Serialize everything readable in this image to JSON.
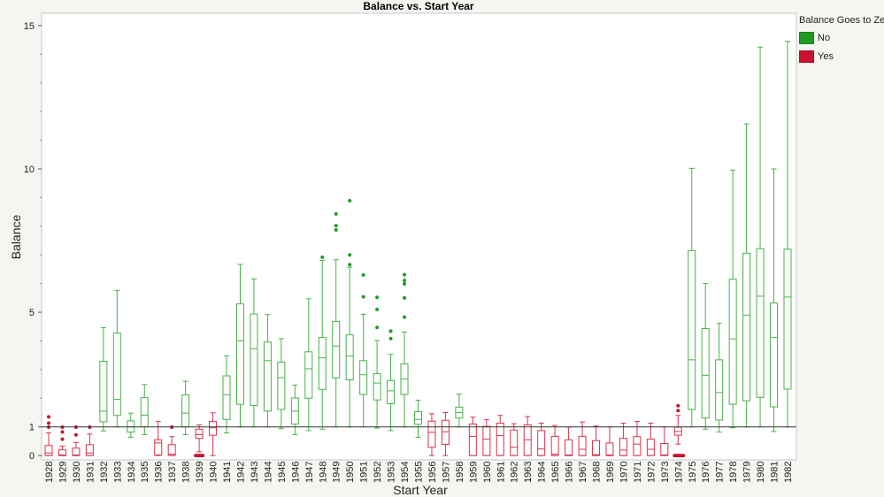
{
  "chart_data": {
    "type": "boxplot",
    "title": "Balance vs. Start Year",
    "xlabel": "Start Year",
    "ylabel": "Balance",
    "ylim": [
      -0.15,
      15.43
    ],
    "yticks": [
      0,
      1,
      5,
      10,
      15
    ],
    "reference_line": 1,
    "legend": {
      "title": "Balance Goes to Zero",
      "placement": "right",
      "entries": [
        {
          "label": "No",
          "color": "#229a22"
        },
        {
          "label": "Yes",
          "color": "#c8142e"
        }
      ]
    },
    "series_colors": {
      "No": "#49b049",
      "Yes": "#d8344e"
    },
    "boxes": [
      {
        "year": "1928",
        "group": "Yes",
        "min": 0,
        "q1": 0,
        "median": 0.09,
        "q3": 0.35,
        "max": 0.79,
        "outliers": [
          1.35,
          1.13,
          0.99
        ]
      },
      {
        "year": "1929",
        "group": "Yes",
        "min": 0,
        "q1": 0,
        "median": 0.02,
        "q3": 0.2,
        "max": 0.33,
        "outliers": [
          0.99,
          0.82,
          0.57
        ]
      },
      {
        "year": "1930",
        "group": "Yes",
        "min": 0,
        "q1": 0,
        "median": 0.02,
        "q3": 0.26,
        "max": 0.46,
        "outliers": [
          0.99,
          0.72
        ]
      },
      {
        "year": "1931",
        "group": "Yes",
        "min": 0,
        "q1": 0,
        "median": 0.09,
        "q3": 0.38,
        "max": 0.75,
        "outliers": [
          0.99
        ]
      },
      {
        "year": "1932",
        "group": "No",
        "min": 0.86,
        "q1": 1.18,
        "median": 1.55,
        "q3": 3.29,
        "max": 4.46,
        "outliers": []
      },
      {
        "year": "1933",
        "group": "No",
        "min": 1.0,
        "q1": 1.4,
        "median": 1.96,
        "q3": 4.27,
        "max": 5.76,
        "outliers": []
      },
      {
        "year": "1934",
        "group": "No",
        "min": 0.64,
        "q1": 0.82,
        "median": 1.0,
        "q3": 1.21,
        "max": 1.48,
        "outliers": []
      },
      {
        "year": "1935",
        "group": "No",
        "min": 0.73,
        "q1": 1.0,
        "median": 1.41,
        "q3": 2.02,
        "max": 2.48,
        "outliers": []
      },
      {
        "year": "1936",
        "group": "Yes",
        "min": 0,
        "q1": 0.02,
        "median": 0.44,
        "q3": 0.55,
        "max": 1.19,
        "outliers": []
      },
      {
        "year": "1937",
        "group": "Yes",
        "min": 0,
        "q1": 0,
        "median": 0.05,
        "q3": 0.38,
        "max": 0.66,
        "outliers": [
          0.99
        ]
      },
      {
        "year": "1938",
        "group": "No",
        "min": 0.73,
        "q1": 1.0,
        "median": 1.48,
        "q3": 2.12,
        "max": 2.59,
        "outliers": []
      },
      {
        "year": "1939",
        "group": "Yes",
        "min": 0.13,
        "q1": 0.6,
        "median": 0.73,
        "q3": 0.92,
        "max": 1.07,
        "outliers": [
          0,
          0,
          0,
          0,
          0
        ]
      },
      {
        "year": "1940",
        "group": "Yes",
        "min": 0,
        "q1": 0.71,
        "median": 0.97,
        "q3": 1.19,
        "max": 1.49,
        "outliers": []
      },
      {
        "year": "1941",
        "group": "No",
        "min": 0.79,
        "q1": 1.26,
        "median": 2.12,
        "q3": 2.78,
        "max": 3.48,
        "outliers": []
      },
      {
        "year": "1942",
        "group": "No",
        "min": 1.0,
        "q1": 1.79,
        "median": 4.0,
        "q3": 5.29,
        "max": 6.67,
        "outliers": []
      },
      {
        "year": "1943",
        "group": "No",
        "min": 1.0,
        "q1": 1.75,
        "median": 3.73,
        "q3": 4.94,
        "max": 6.16,
        "outliers": []
      },
      {
        "year": "1944",
        "group": "No",
        "min": 1.0,
        "q1": 1.55,
        "median": 3.31,
        "q3": 3.96,
        "max": 4.92,
        "outliers": []
      },
      {
        "year": "1945",
        "group": "No",
        "min": 0.94,
        "q1": 1.61,
        "median": 2.72,
        "q3": 3.26,
        "max": 4.08,
        "outliers": []
      },
      {
        "year": "1946",
        "group": "No",
        "min": 0.73,
        "q1": 1.1,
        "median": 1.55,
        "q3": 2.01,
        "max": 2.46,
        "outliers": []
      },
      {
        "year": "1947",
        "group": "No",
        "min": 0.87,
        "q1": 2.0,
        "median": 3.03,
        "q3": 3.62,
        "max": 5.47,
        "outliers": []
      },
      {
        "year": "1948",
        "group": "No",
        "min": 0.92,
        "q1": 2.31,
        "median": 3.41,
        "q3": 4.12,
        "max": 6.81,
        "outliers": [
          6.92
        ]
      },
      {
        "year": "1949",
        "group": "No",
        "min": 1.0,
        "q1": 2.71,
        "median": 3.82,
        "q3": 4.68,
        "max": 6.83,
        "outliers": [
          8.43,
          8.02,
          7.87
        ]
      },
      {
        "year": "1950",
        "group": "No",
        "min": 1.0,
        "q1": 2.64,
        "median": 3.47,
        "q3": 4.21,
        "max": 6.57,
        "outliers": [
          6.66,
          7.0,
          8.89
        ]
      },
      {
        "year": "1951",
        "group": "No",
        "min": 1.0,
        "q1": 2.13,
        "median": 2.82,
        "q3": 3.31,
        "max": 4.93,
        "outliers": [
          5.54,
          6.3
        ]
      },
      {
        "year": "1952",
        "group": "No",
        "min": 0.96,
        "q1": 1.94,
        "median": 2.53,
        "q3": 2.86,
        "max": 4.01,
        "outliers": [
          4.47,
          5.1,
          5.52
        ]
      },
      {
        "year": "1953",
        "group": "No",
        "min": 0.87,
        "q1": 1.81,
        "median": 2.26,
        "q3": 2.62,
        "max": 3.53,
        "outliers": [
          4.08,
          4.34,
          4.34
        ]
      },
      {
        "year": "1954",
        "group": "No",
        "min": 1.0,
        "q1": 2.13,
        "median": 2.67,
        "q3": 3.2,
        "max": 4.31,
        "outliers": [
          4.83,
          5.5,
          5.99,
          6.11,
          6.31
        ]
      },
      {
        "year": "1955",
        "group": "No",
        "min": 0.64,
        "q1": 1.09,
        "median": 1.26,
        "q3": 1.53,
        "max": 1.93,
        "outliers": []
      },
      {
        "year": "1956",
        "group": "Yes",
        "min": 0,
        "q1": 0.29,
        "median": 0.81,
        "q3": 1.2,
        "max": 1.46,
        "outliers": []
      },
      {
        "year": "1957",
        "group": "Yes",
        "min": 0,
        "q1": 0.39,
        "median": 0.83,
        "q3": 1.23,
        "max": 1.5,
        "outliers": []
      },
      {
        "year": "1958",
        "group": "No",
        "min": 1.0,
        "q1": 1.31,
        "median": 1.5,
        "q3": 1.69,
        "max": 2.14,
        "outliers": []
      },
      {
        "year": "1959",
        "group": "Yes",
        "min": 0,
        "q1": 0,
        "median": 0.67,
        "q3": 1.1,
        "max": 1.34,
        "outliers": []
      },
      {
        "year": "1960",
        "group": "Yes",
        "min": 0,
        "q1": 0,
        "median": 0.57,
        "q3": 1.02,
        "max": 1.25,
        "outliers": []
      },
      {
        "year": "1961",
        "group": "Yes",
        "min": 0,
        "q1": 0,
        "median": 0.7,
        "q3": 1.13,
        "max": 1.4,
        "outliers": []
      },
      {
        "year": "1962",
        "group": "Yes",
        "min": 0,
        "q1": 0,
        "median": 0.29,
        "q3": 0.89,
        "max": 1.11,
        "outliers": []
      },
      {
        "year": "1963",
        "group": "Yes",
        "min": 0,
        "q1": 0,
        "median": 0.55,
        "q3": 1.07,
        "max": 1.36,
        "outliers": []
      },
      {
        "year": "1964",
        "group": "Yes",
        "min": 0,
        "q1": 0,
        "median": 0.23,
        "q3": 0.87,
        "max": 1.13,
        "outliers": []
      },
      {
        "year": "1965",
        "group": "Yes",
        "min": 0,
        "q1": 0,
        "median": 0.05,
        "q3": 0.67,
        "max": 1.05,
        "outliers": []
      },
      {
        "year": "1966",
        "group": "Yes",
        "min": 0,
        "q1": 0,
        "median": 0.02,
        "q3": 0.55,
        "max": 0.99,
        "outliers": []
      },
      {
        "year": "1967",
        "group": "Yes",
        "min": 0,
        "q1": 0,
        "median": 0.22,
        "q3": 0.67,
        "max": 1.17,
        "outliers": []
      },
      {
        "year": "1968",
        "group": "Yes",
        "min": 0,
        "q1": 0,
        "median": 0.03,
        "q3": 0.52,
        "max": 1.03,
        "outliers": []
      },
      {
        "year": "1969",
        "group": "Yes",
        "min": 0,
        "q1": 0,
        "median": 0.02,
        "q3": 0.44,
        "max": 1.0,
        "outliers": []
      },
      {
        "year": "1970",
        "group": "Yes",
        "min": 0,
        "q1": 0,
        "median": 0.19,
        "q3": 0.6,
        "max": 1.13,
        "outliers": []
      },
      {
        "year": "1971",
        "group": "Yes",
        "min": 0,
        "q1": 0,
        "median": 0.4,
        "q3": 0.66,
        "max": 1.19,
        "outliers": []
      },
      {
        "year": "1972",
        "group": "Yes",
        "min": 0,
        "q1": 0,
        "median": 0.22,
        "q3": 0.57,
        "max": 1.13,
        "outliers": []
      },
      {
        "year": "1973",
        "group": "Yes",
        "min": 0,
        "q1": 0,
        "median": 0.02,
        "q3": 0.42,
        "max": 1.0,
        "outliers": []
      },
      {
        "year": "1974",
        "group": "Yes",
        "min": 0.4,
        "q1": 0.71,
        "median": 0.84,
        "q3": 0.99,
        "max": 1.4,
        "outliers": [
          1.57,
          1.74,
          0,
          0,
          0,
          0,
          0,
          0
        ]
      },
      {
        "year": "1975",
        "group": "No",
        "min": 1.0,
        "q1": 1.61,
        "median": 3.34,
        "q3": 7.15,
        "max": 10.02,
        "outliers": []
      },
      {
        "year": "1976",
        "group": "No",
        "min": 0.92,
        "q1": 1.31,
        "median": 2.8,
        "q3": 4.43,
        "max": 6.0,
        "outliers": []
      },
      {
        "year": "1977",
        "group": "No",
        "min": 0.82,
        "q1": 1.24,
        "median": 2.2,
        "q3": 3.34,
        "max": 4.61,
        "outliers": []
      },
      {
        "year": "1978",
        "group": "No",
        "min": 0.97,
        "q1": 1.79,
        "median": 4.07,
        "q3": 6.15,
        "max": 9.96,
        "outliers": []
      },
      {
        "year": "1979",
        "group": "No",
        "min": 1.0,
        "q1": 1.91,
        "median": 4.9,
        "q3": 7.06,
        "max": 11.57,
        "outliers": []
      },
      {
        "year": "1980",
        "group": "No",
        "min": 1.0,
        "q1": 2.03,
        "median": 5.56,
        "q3": 7.22,
        "max": 14.25,
        "outliers": []
      },
      {
        "year": "1981",
        "group": "No",
        "min": 0.84,
        "q1": 1.7,
        "median": 4.12,
        "q3": 5.32,
        "max": 10.0,
        "outliers": []
      },
      {
        "year": "1982",
        "group": "No",
        "min": 1.0,
        "q1": 2.32,
        "median": 5.53,
        "q3": 7.2,
        "max": 14.45,
        "outliers": []
      }
    ]
  }
}
